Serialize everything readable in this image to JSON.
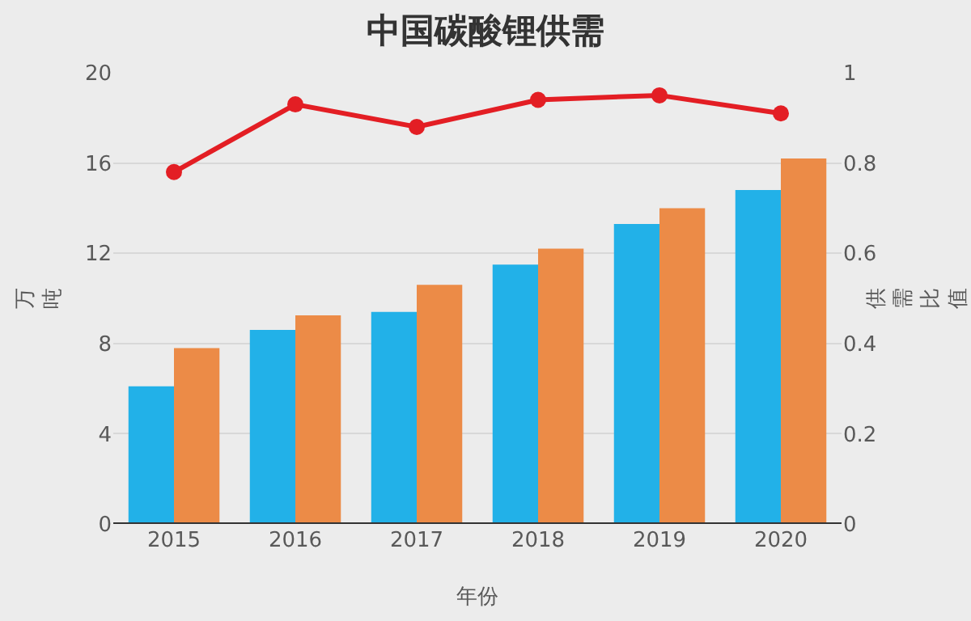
{
  "chart_data": {
    "type": "bar",
    "title": "中国碳酸锂供需",
    "xlabel": "年份",
    "ylabel": "万吨",
    "y2label": "供需比值",
    "categories": [
      "2015",
      "2016",
      "2017",
      "2018",
      "2019",
      "2020"
    ],
    "series": [
      {
        "color": "#22b1e8",
        "values": [
          6.1,
          8.6,
          9.4,
          11.5,
          13.3,
          14.8
        ]
      },
      {
        "color": "#ec8b47",
        "values": [
          7.8,
          9.25,
          10.6,
          12.2,
          14.0,
          16.2
        ]
      },
      {
        "type": "line",
        "axis": "y2",
        "color": "#e31e24",
        "marker": "circle",
        "values": [
          0.78,
          0.93,
          0.88,
          0.94,
          0.95,
          0.91
        ]
      }
    ],
    "ylim": [
      0,
      20
    ],
    "yticks": [
      0,
      4,
      8,
      12,
      16,
      20
    ],
    "y2lim": [
      0,
      1
    ],
    "y2ticks": [
      0,
      0.2,
      0.4,
      0.6,
      0.8,
      1
    ],
    "grid": "y",
    "legend": false
  }
}
